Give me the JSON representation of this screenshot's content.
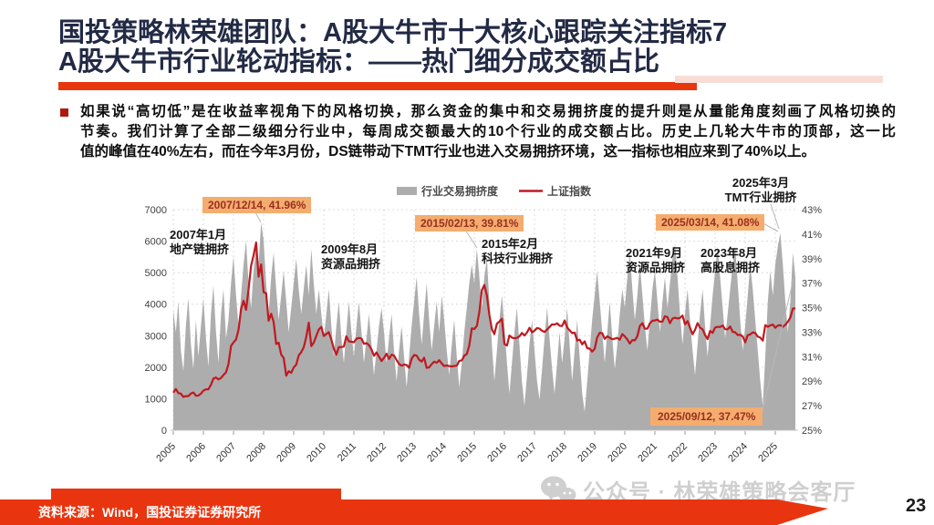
{
  "slide": {
    "title_line1": "国投策略林荣雄团队：A股大牛市十大核心跟踪关注指标7",
    "title_line2": "A股大牛市行业轮动指标：——热门细分成交额占比",
    "bullet": {
      "line1": "如果说“高切低”是在收益率视角下的风格切换，那么资金的集中和交易拥挤度的提升则是从量能角度刻画了风格切换的",
      "line2": "节奏。我们计算了全部二级细分行业中，每周成交额最大的10个行业的成交额占比。历史上几轮大牛市的顶部，这一比",
      "line3": "值的峰值在40%左右，而在今年3月份，DS链带动下TMT行业也进入交易拥挤环境，这一指标也相应来到了40%以上。"
    },
    "watermark": "公众号 · 林荣雄策略会客厅",
    "source_note": "资料来源：Wind，国投证券证券研究所",
    "page_number": "23",
    "colors": {
      "accent_red": "#e9350f",
      "title_navy": "#232a45",
      "area_gray": "#adadad",
      "index_line_red": "#c01920",
      "annotation_box_bg": "#f4ad6e",
      "annotation_box_text": "#992f1f",
      "watermark_gray": "#cacaca"
    }
  },
  "chart_data": {
    "type": "combo_area_line",
    "title": "",
    "grid": true,
    "legend_position": "top-center",
    "x_monthly_start": "2005-01",
    "x_monthly_end": "2025-09",
    "x_tick_labels": [
      "2005",
      "2006",
      "2007",
      "2008",
      "2009",
      "2010",
      "2011",
      "2012",
      "2013",
      "2014",
      "2015",
      "2016",
      "2017",
      "2018",
      "2019",
      "2020",
      "2021",
      "2022",
      "2023",
      "2024",
      "2025"
    ],
    "left_axis": {
      "series": "上证指数",
      "min": 0,
      "max": 7000,
      "ticks": [
        "0",
        "1000",
        "2000",
        "3000",
        "4000",
        "5000",
        "6000",
        "7000"
      ]
    },
    "right_axis": {
      "series": "行业交易拥挤度",
      "min": 25,
      "max": 43,
      "ticks": [
        "25%",
        "27%",
        "29%",
        "31%",
        "33%",
        "35%",
        "37%",
        "39%",
        "41%",
        "43%"
      ]
    },
    "series": [
      {
        "name": "行业交易拥挤度",
        "type": "area",
        "axis": "right",
        "unit": "%",
        "color": "#adadad",
        "values": [
          34.8,
          33.0,
          35.5,
          31.5,
          29.8,
          33.5,
          35.8,
          32.0,
          30.0,
          34.0,
          31.0,
          33.5,
          35.8,
          32.5,
          30.2,
          34.5,
          36.8,
          33.0,
          30.5,
          34.5,
          36.5,
          32.5,
          34.0,
          37.0,
          39.2,
          36.0,
          33.5,
          36.0,
          38.5,
          40.5,
          37.0,
          35.0,
          38.0,
          40.0,
          38.5,
          41.96,
          40.5,
          37.0,
          34.5,
          37.5,
          39.5,
          36.5,
          34.0,
          36.0,
          38.0,
          35.5,
          33.0,
          35.0,
          37.0,
          39.0,
          36.5,
          34.5,
          36.5,
          38.5,
          36.0,
          39.8,
          37.0,
          34.5,
          36.5,
          34.5,
          32.5,
          34.5,
          36.5,
          33.5,
          31.0,
          33.5,
          35.5,
          32.5,
          30.5,
          33.0,
          35.5,
          33.0,
          31.0,
          33.5,
          35.5,
          33.0,
          30.5,
          32.5,
          34.5,
          32.0,
          29.5,
          31.5,
          33.5,
          35.0,
          33.0,
          30.5,
          32.5,
          34.5,
          31.5,
          29.0,
          31.5,
          33.5,
          31.0,
          28.5,
          31.0,
          33.5,
          35.5,
          37.5,
          34.5,
          32.0,
          34.5,
          37.0,
          34.0,
          31.5,
          33.5,
          35.5,
          33.0,
          36.0,
          34.0,
          31.5,
          29.5,
          32.0,
          34.0,
          31.0,
          28.5,
          30.5,
          33.0,
          35.0,
          37.0,
          38.5,
          37.0,
          39.81,
          37.5,
          35.0,
          37.5,
          39.0,
          35.5,
          32.0,
          29.0,
          31.5,
          34.0,
          36.0,
          33.5,
          30.5,
          28.0,
          30.5,
          33.0,
          35.0,
          32.0,
          29.0,
          27.0,
          29.5,
          32.0,
          34.0,
          31.5,
          29.0,
          27.5,
          30.0,
          32.5,
          35.0,
          32.5,
          30.0,
          28.0,
          30.5,
          33.0,
          30.5,
          32.5,
          35.0,
          32.0,
          29.0,
          31.5,
          34.0,
          31.0,
          28.0,
          26.5,
          29.0,
          31.5,
          34.0,
          36.0,
          38.0,
          35.5,
          33.0,
          30.5,
          33.0,
          35.5,
          32.5,
          30.0,
          32.0,
          34.5,
          36.5,
          35.0,
          37.5,
          39.5,
          36.5,
          34.0,
          36.0,
          38.5,
          36.0,
          33.5,
          31.5,
          34.0,
          36.5,
          38.0,
          35.5,
          33.0,
          35.5,
          37.5,
          35.0,
          37.0,
          39.0,
          40.2,
          37.5,
          34.5,
          32.0,
          34.5,
          36.5,
          34.0,
          31.5,
          29.5,
          32.0,
          34.5,
          36.5,
          33.5,
          31.0,
          33.5,
          36.0,
          38.0,
          40.0,
          37.5,
          35.0,
          32.5,
          34.5,
          36.5,
          38.5,
          40.0,
          37.0,
          34.0,
          31.5,
          33.5,
          36.0,
          38.5,
          36.5,
          34.0,
          31.5,
          29.0,
          27.0,
          31.0,
          35.5,
          38.0,
          36.0,
          38.5,
          40.0,
          41.08,
          38.5,
          35.5,
          33.0,
          35.5,
          39.5,
          37.47
        ]
      },
      {
        "name": "上证指数",
        "type": "line",
        "axis": "left",
        "color": "#c01920",
        "values": [
          1191,
          1306,
          1181,
          1159,
          1060,
          1081,
          1083,
          1162,
          1197,
          1092,
          1099,
          1161,
          1258,
          1299,
          1298,
          1440,
          1641,
          1672,
          1612,
          1658,
          1752,
          1837,
          2099,
          2675,
          2786,
          2881,
          3184,
          3841,
          4109,
          3821,
          4471,
          5218,
          5552,
          5955,
          4871,
          5262,
          4383,
          4348,
          3473,
          3693,
          3433,
          2736,
          2776,
          2397,
          2294,
          1729,
          1871,
          1821,
          1991,
          2083,
          2373,
          2478,
          2633,
          2959,
          3412,
          2668,
          2779,
          2995,
          3195,
          3277,
          2989,
          3052,
          3109,
          2871,
          2592,
          2398,
          2638,
          2639,
          2656,
          2979,
          2820,
          2808,
          2790,
          2905,
          2928,
          2911,
          2743,
          2762,
          2701,
          2567,
          2359,
          2468,
          2333,
          2199,
          2293,
          2428,
          2262,
          2396,
          2372,
          2225,
          2103,
          2047,
          2086,
          2068,
          1980,
          2269,
          2385,
          2366,
          2237,
          2178,
          2301,
          1979,
          1994,
          2098,
          2175,
          2141,
          2221,
          2116,
          2033,
          2056,
          2033,
          2026,
          2039,
          2048,
          2202,
          2217,
          2364,
          2420,
          2683,
          3235,
          3210,
          3310,
          3748,
          4442,
          4612,
          4277,
          3664,
          3206,
          3053,
          3383,
          3445,
          3539,
          2738,
          2688,
          3004,
          2938,
          2917,
          2930,
          2979,
          3085,
          3005,
          3100,
          3250,
          3104,
          3159,
          3242,
          3223,
          3155,
          3117,
          3192,
          3273,
          3361,
          3349,
          3393,
          3317,
          3307,
          3481,
          3259,
          3169,
          3082,
          3095,
          2847,
          2876,
          2725,
          2821,
          2603,
          2588,
          2494,
          2585,
          2941,
          3091,
          3078,
          2899,
          2979,
          2933,
          2886,
          2905,
          2929,
          2872,
          3050,
          2977,
          2880,
          2750,
          2860,
          2852,
          2985,
          3310,
          3396,
          3218,
          3225,
          3392,
          3473,
          3483,
          3509,
          3442,
          3447,
          3615,
          3591,
          3397,
          3544,
          3568,
          3547,
          3564,
          3640,
          3361,
          3462,
          3252,
          3047,
          3186,
          3399,
          3253,
          3202,
          3024,
          2893,
          3151,
          3089,
          3256,
          3280,
          3273,
          3323,
          3205,
          3202,
          3291,
          3120,
          3110,
          3019,
          3030,
          2975,
          2789,
          3015,
          3041,
          3105,
          3087,
          2967,
          2938,
          2842,
          3336,
          3280,
          3326,
          3352,
          3251,
          3321,
          3336,
          3279,
          3347,
          3444,
          3573,
          3858,
          3870
        ]
      }
    ],
    "annotations": {
      "box_2007": "2007/12/14, 41.96%",
      "box_2015": "2015/02/13, 39.81%",
      "box_2025_peak": "2025/03/14, 41.08%",
      "box_2025_latest": "2025/09/12, 37.47%",
      "label_2007": {
        "l1": "2007年1月",
        "l2": "地产链拥挤"
      },
      "label_2009": {
        "l1": "2009年8月",
        "l2": "资源品拥挤"
      },
      "label_2015": {
        "l1": "2015年2月",
        "l2": "科技行业拥挤"
      },
      "label_2021": {
        "l1": "2021年9月",
        "l2": "资源品拥挤"
      },
      "label_2023": {
        "l1": "2023年8月",
        "l2": "高股息拥挤"
      },
      "label_2025": {
        "l1": "2025年3月",
        "l2": "TMT行业拥挤"
      }
    }
  }
}
